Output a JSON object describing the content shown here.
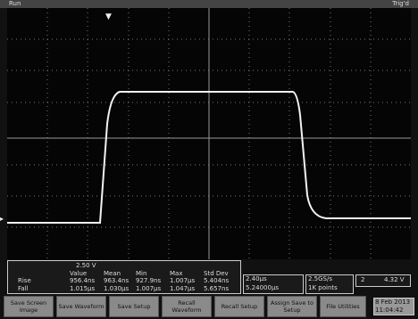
{
  "status_bar": {
    "left": "Run",
    "right": "Trig'd"
  },
  "channel_scale": "2.50 V",
  "measurements": {
    "header": [
      "Value",
      "Mean",
      "Min",
      "Max",
      "Std Dev"
    ],
    "rows": [
      [
        "Rise",
        "956.4ns",
        "963.4ns",
        "927.9ns",
        "1.007µs",
        "5.404ns"
      ],
      [
        "Fall",
        "1.015µs",
        "1.030µs",
        "1.007µs",
        "1.047µs",
        "5.657ns"
      ]
    ]
  },
  "horizontal": {
    "scale": "2.40µs",
    "position": "5.24000µs",
    "rate": "2.5GS/s",
    "record": "1K points"
  },
  "trigger": {
    "channel": "2",
    "level": "4.32 V"
  },
  "buttons": [
    "Save Screen Image",
    "Save Waveform",
    "Save Setup",
    "Recall Waveform",
    "Recall Setup",
    "Assign Save to Setup",
    "File Utilities"
  ],
  "clock": {
    "date": "8 Feb 2013",
    "time": "11:04:42"
  }
}
